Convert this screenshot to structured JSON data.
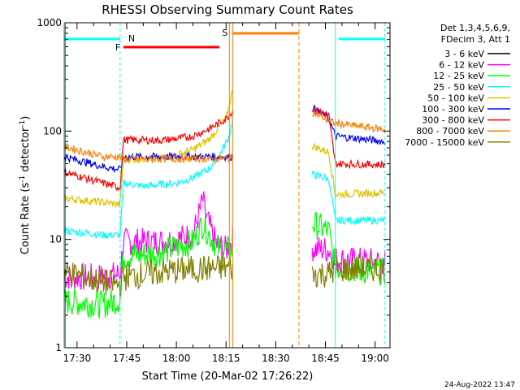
{
  "chart_data": {
    "type": "line",
    "title": "RHESSI Observing Summary Count Rates",
    "xlabel": "Start Time (20-Mar-02 17:26:22)",
    "ylabel_main": "Count Rate (s",
    "ylabel_sup1": "-1",
    "ylabel_mid": " detector",
    "ylabel_sup2": "-1",
    "ylabel_end": ")",
    "y_scale": "log",
    "xlim": [
      "17:26:22",
      "19:04:30"
    ],
    "ylim": [
      1,
      1000
    ],
    "x_ticks": [
      "17:30",
      "17:45",
      "18:00",
      "18:15",
      "18:30",
      "18:45",
      "19:00"
    ],
    "y_ticks": [
      "1",
      "10",
      "100",
      "1000"
    ],
    "legend_header": [
      "Det 1,3,4,5,6,9,",
      "FDecim 3, Att 1"
    ],
    "legend_position": "right",
    "series": [
      {
        "name": "3 - 6 keV",
        "color": "#000000",
        "x": [],
        "values": []
      },
      {
        "name": "6 - 12 keV",
        "color": "#ff00ff",
        "x": [
          "17:26",
          "17:38",
          "17:43",
          "17:44",
          "17:55",
          "18:00",
          "18:05",
          "18:07",
          "18:08",
          "18:09",
          "18:12",
          "18:15",
          "18:17",
          "18:46",
          "18:48",
          "19:03"
        ],
        "values": [
          4.5,
          4.5,
          4.8,
          9.5,
          9.5,
          10,
          11,
          18,
          23,
          16,
          9,
          8,
          10,
          8,
          6.5,
          6.2
        ]
      },
      {
        "name": "12 - 25 keV",
        "color": "#00ff00",
        "x": [
          "17:26",
          "17:38",
          "17:43",
          "17:44",
          "17:55",
          "18:05",
          "18:08",
          "18:10",
          "18:13",
          "18:17",
          "18:41",
          "18:46",
          "18:48",
          "19:03"
        ],
        "values": [
          2.7,
          2.5,
          2.8,
          7,
          7.5,
          9.5,
          14,
          11,
          8,
          8,
          14,
          12,
          5.5,
          5
        ]
      },
      {
        "name": "25 - 50 keV",
        "color": "#00ffff",
        "x": [
          "17:26",
          "17:38",
          "17:43",
          "17:44",
          "17:50",
          "17:55",
          "18:00",
          "18:05",
          "18:10",
          "18:13",
          "18:16",
          "18:17",
          "18:41",
          "18:46",
          "18:48",
          "19:03"
        ],
        "values": [
          12,
          11,
          11,
          33,
          31,
          32,
          33,
          37,
          45,
          60,
          90,
          130,
          40,
          36,
          15,
          15
        ]
      },
      {
        "name": "50 - 100 keV",
        "color": "#e0c000",
        "x": [
          "17:26",
          "17:38",
          "17:43",
          "17:44",
          "17:55",
          "18:00",
          "18:05",
          "18:10",
          "18:15",
          "18:17",
          "18:41",
          "18:46",
          "18:48",
          "19:03"
        ],
        "values": [
          24,
          22,
          21,
          55,
          56,
          60,
          67,
          85,
          130,
          240,
          73,
          64,
          26,
          27
        ]
      },
      {
        "name": "100 - 300 keV",
        "color": "#0000ff",
        "x": [
          "17:26",
          "17:38",
          "17:43",
          "17:44",
          "18:17",
          "18:41",
          "18:46",
          "18:48",
          "19:03"
        ],
        "values": [
          58,
          47,
          44,
          58,
          58,
          165,
          130,
          90,
          80
        ]
      },
      {
        "name": "300 - 800 keV",
        "color": "#ff0000",
        "x": [
          "17:26",
          "17:38",
          "17:43",
          "17:44",
          "17:55",
          "18:00",
          "18:05",
          "18:10",
          "18:15",
          "18:17",
          "18:41",
          "18:46",
          "18:48",
          "19:03"
        ],
        "values": [
          42,
          33,
          30,
          83,
          82,
          85,
          90,
          105,
          130,
          155,
          160,
          140,
          50,
          49
        ]
      },
      {
        "name": "800 - 7000 keV",
        "color": "#ff8000",
        "x": [
          "17:26",
          "17:38",
          "17:43",
          "17:44",
          "18:17",
          "18:41",
          "18:46",
          "18:48",
          "19:03"
        ],
        "values": [
          72,
          58,
          58,
          55,
          56,
          150,
          125,
          118,
          103
        ]
      },
      {
        "name": "7000 - 15000 keV",
        "color": "#808000",
        "x": [
          "17:26",
          "17:38",
          "17:43",
          "17:44",
          "17:55",
          "18:05",
          "18:17",
          "18:41",
          "18:46",
          "18:48",
          "19:03"
        ],
        "values": [
          5,
          4,
          3.8,
          4.5,
          5,
          5.3,
          5.5,
          4.8,
          4.8,
          5.3,
          5.4
        ]
      }
    ],
    "annotations": {
      "saa_label": "S",
      "night_label": "N",
      "flare_label": "F",
      "night_bar": [
        "17:26",
        "17:44"
      ],
      "night_bar2": [
        "18:49",
        "19:03"
      ],
      "flare_bar": [
        "17:44",
        "18:13"
      ],
      "saa_bar": [
        "18:17",
        "18:37"
      ]
    }
  },
  "footer": {
    "date_stamp": "24-Aug-2022 13:47"
  }
}
